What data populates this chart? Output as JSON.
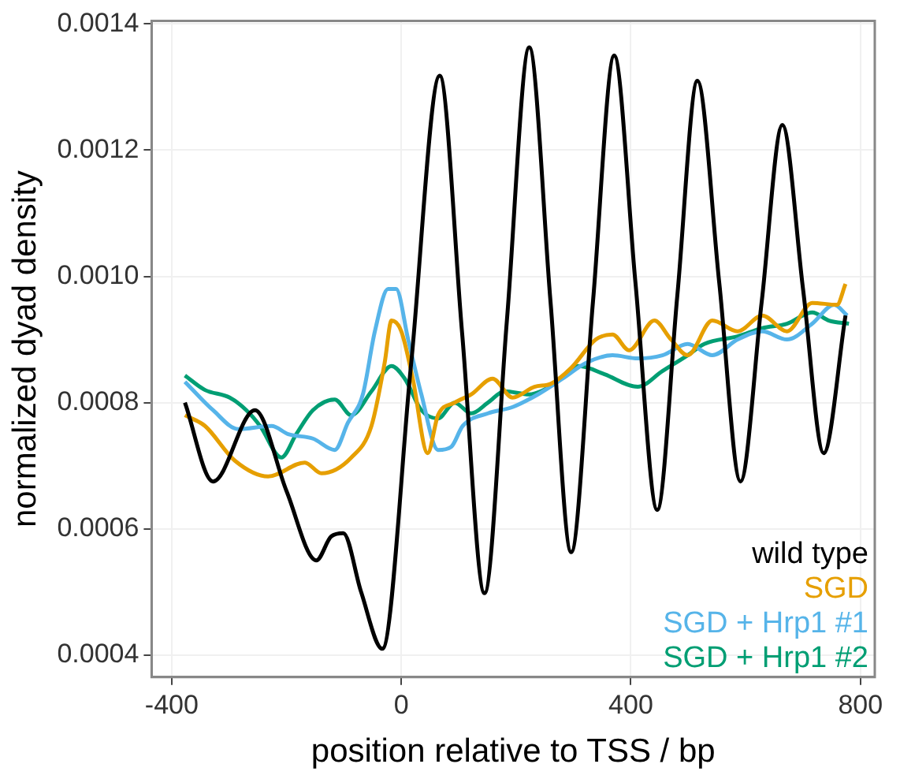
{
  "chart_data": {
    "type": "line",
    "xlabel": "position relative to TSS / bp",
    "ylabel": "normalized dyad density",
    "xlim": [
      -435,
      825
    ],
    "xticks": [
      -400,
      0,
      400,
      800
    ],
    "ylim": [
      0.000365,
      0.001405
    ],
    "yticks": [
      0.0004,
      0.0006,
      0.0008,
      {
        "value": 0.001,
        "label": "0.0010"
      },
      0.0012,
      0.0014
    ],
    "grid": true,
    "legend": "bottom right",
    "marker": "none",
    "line_style": "solid",
    "series": [
      {
        "name": "wild type",
        "color": "#000000",
        "x": [
          -377,
          -328,
          -255,
          -200,
          -148,
          -122,
          -101,
          -70,
          -33,
          17,
          67,
          106,
          145,
          184,
          223,
          260,
          296,
          334,
          371,
          408,
          446,
          481,
          516,
          554,
          591,
          628,
          664,
          700,
          736,
          774
        ],
        "values": [
          0.0008,
          0.000675,
          0.000788,
          0.00066,
          0.00055,
          0.000588,
          0.000593,
          0.0005,
          0.00041,
          0.00086,
          0.001318,
          0.00091,
          0.000498,
          0.00093,
          0.001363,
          0.00096,
          0.000563,
          0.00096,
          0.00135,
          0.00099,
          0.00063,
          0.00097,
          0.00131,
          0.00099,
          0.000675,
          0.00096,
          0.00124,
          0.00098,
          0.00072,
          0.000938
        ]
      },
      {
        "name": "SGD",
        "color": "#e69f00",
        "x": [
          -377,
          -342,
          -290,
          -232,
          -168,
          -139,
          -87,
          -52,
          -29,
          -17,
          0,
          20,
          46,
          64,
          93,
          122,
          159,
          194,
          232,
          261,
          296,
          339,
          368,
          397,
          441,
          470,
          499,
          542,
          586,
          629,
          672,
          716,
          759,
          774
        ],
        "values": [
          0.00078,
          0.000763,
          0.000708,
          0.000683,
          0.000705,
          0.000688,
          0.000713,
          0.000763,
          0.000863,
          0.00093,
          0.000913,
          0.000838,
          0.00072,
          0.00078,
          0.0008,
          0.000813,
          0.000838,
          0.000808,
          0.000825,
          0.00083,
          0.000855,
          0.0009,
          0.000908,
          0.000883,
          0.00093,
          0.0009,
          0.000875,
          0.00093,
          0.000913,
          0.000938,
          0.000913,
          0.000958,
          0.000955,
          0.000988
        ]
      },
      {
        "name": "SGD + Hrp1 #1",
        "color": "#56b4e9",
        "x": [
          -377,
          -328,
          -284,
          -226,
          -197,
          -154,
          -116,
          -93,
          -67,
          -46,
          -23,
          -9,
          12,
          35,
          64,
          87,
          107,
          151,
          194,
          238,
          281,
          322,
          368,
          412,
          455,
          499,
          542,
          586,
          629,
          672,
          716,
          754,
          777
        ],
        "values": [
          0.000833,
          0.000788,
          0.000758,
          0.000763,
          0.00075,
          0.000743,
          0.000725,
          0.000768,
          0.000813,
          0.000913,
          0.00098,
          0.00098,
          0.0009,
          0.000813,
          0.000725,
          0.00073,
          0.000763,
          0.000783,
          0.000793,
          0.000813,
          0.000838,
          0.000863,
          0.000875,
          0.00087,
          0.000875,
          0.000893,
          0.000875,
          0.0009,
          0.000913,
          0.0009,
          0.000925,
          0.000955,
          0.000938
        ]
      },
      {
        "name": "SGD + Hrp1 #2",
        "color": "#009e73",
        "x": [
          -377,
          -342,
          -299,
          -270,
          -246,
          -209,
          -183,
          -154,
          -116,
          -87,
          -52,
          -17,
          6,
          35,
          64,
          93,
          122,
          151,
          180,
          223,
          267,
          310,
          354,
          412,
          455,
          499,
          528,
          586,
          629,
          672,
          716,
          745,
          780
        ],
        "values": [
          0.000843,
          0.00082,
          0.000808,
          0.000788,
          0.000763,
          0.000713,
          0.00075,
          0.000788,
          0.000805,
          0.00078,
          0.000818,
          0.000858,
          0.000838,
          0.000788,
          0.000775,
          0.0008,
          0.000783,
          0.0008,
          0.000818,
          0.000813,
          0.00083,
          0.000858,
          0.000845,
          0.000825,
          0.00085,
          0.000875,
          0.000893,
          0.000905,
          0.000918,
          0.000925,
          0.000943,
          0.00093,
          0.000925
        ]
      }
    ]
  }
}
